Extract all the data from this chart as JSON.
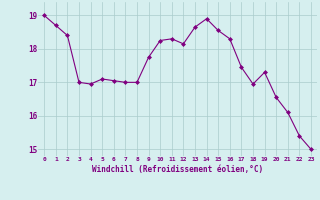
{
  "x": [
    0,
    1,
    2,
    3,
    4,
    5,
    6,
    7,
    8,
    9,
    10,
    11,
    12,
    13,
    14,
    15,
    16,
    17,
    18,
    19,
    20,
    21,
    22,
    23
  ],
  "y": [
    19.0,
    18.7,
    18.4,
    17.0,
    16.95,
    17.1,
    17.05,
    17.0,
    17.0,
    17.75,
    18.25,
    18.3,
    18.15,
    18.65,
    18.9,
    18.55,
    18.3,
    17.45,
    16.95,
    17.3,
    16.55,
    16.1,
    15.4,
    15.0
  ],
  "line_color": "#800080",
  "marker": "D",
  "marker_size": 2,
  "bg_color": "#d6efef",
  "grid_color": "#aacccc",
  "xlabel": "Windchill (Refroidissement éolien,°C)",
  "xlabel_color": "#800080",
  "tick_color": "#800080",
  "ylim": [
    14.8,
    19.4
  ],
  "xlim": [
    -0.5,
    23.5
  ],
  "yticks": [
    15,
    16,
    17,
    18,
    19
  ],
  "xticks": [
    0,
    1,
    2,
    3,
    4,
    5,
    6,
    7,
    8,
    9,
    10,
    11,
    12,
    13,
    14,
    15,
    16,
    17,
    18,
    19,
    20,
    21,
    22,
    23
  ]
}
